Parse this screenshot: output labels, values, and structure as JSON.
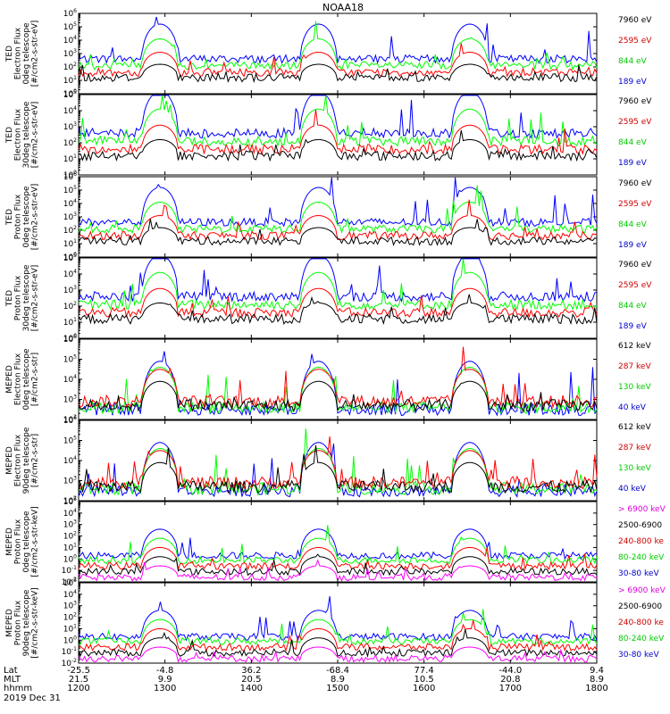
{
  "title": "NOAA18",
  "colors": {
    "black": "#000000",
    "red": "#ff0000",
    "green": "#00ff00",
    "blue": "#0000ff",
    "magenta": "#ff00ff",
    "text_red": "#d00000",
    "text_green": "#00cc00",
    "text_blue": "#0000cc",
    "text_magenta": "#dd00dd"
  },
  "footer": {
    "row_labels": [
      "Lat",
      "MLT",
      "hhmm"
    ],
    "date": "2019 Dec 31",
    "lat": [
      "-25.5",
      "-4.8",
      "36.2",
      "-68.4",
      "77.4",
      "-44.0",
      "9.4"
    ],
    "mlt": [
      "21.5",
      "9.9",
      "20.5",
      "8.9",
      "10.5",
      "20.8",
      "8.9"
    ],
    "hhmm": [
      "1200",
      "1300",
      "1400",
      "1500",
      "1600",
      "1700",
      "1800"
    ]
  },
  "chart_data": [
    {
      "type": "line",
      "ylabel": [
        "TED",
        "Electron Flux",
        "0deg telescope",
        "[#/cm2-s-str-eV]"
      ],
      "ylim_exp": [
        0,
        6
      ],
      "series": [
        {
          "name": "7960 eV",
          "color": "black"
        },
        {
          "name": "2595 eV",
          "color": "red"
        },
        {
          "name": "844 eV",
          "color": "green"
        },
        {
          "name": "189 eV",
          "color": "blue"
        }
      ]
    },
    {
      "type": "line",
      "ylabel": [
        "TED",
        "Electron Flux",
        "30deg telescope",
        "[#/cm2-s-str-eV]"
      ],
      "ylim_exp": [
        0,
        5
      ],
      "series": [
        {
          "name": "7960 eV",
          "color": "black"
        },
        {
          "name": "2595 eV",
          "color": "red"
        },
        {
          "name": "844 eV",
          "color": "green"
        },
        {
          "name": "189 eV",
          "color": "blue"
        }
      ]
    },
    {
      "type": "line",
      "ylabel": [
        "TED",
        "Proton Flux",
        "0deg telescope",
        "[#/cm2-s-str-eV]"
      ],
      "ylim_exp": [
        0,
        6
      ],
      "series": [
        {
          "name": "7960 eV",
          "color": "black"
        },
        {
          "name": "2595 eV",
          "color": "red"
        },
        {
          "name": "844 eV",
          "color": "green"
        },
        {
          "name": "189 eV",
          "color": "blue"
        }
      ]
    },
    {
      "type": "line",
      "ylabel": [
        "TED",
        "Proton Flux",
        "30deg telescope",
        "[#/cm2-s-str-eV]"
      ],
      "ylim_exp": [
        0,
        5
      ],
      "series": [
        {
          "name": "7960 eV",
          "color": "black"
        },
        {
          "name": "2595 eV",
          "color": "red"
        },
        {
          "name": "844 eV",
          "color": "green"
        },
        {
          "name": "189 eV",
          "color": "blue"
        }
      ]
    },
    {
      "type": "line",
      "ylabel": [
        "MEPED",
        "Electron Flux",
        "0deg telescope",
        "[#/cm2-s-str]"
      ],
      "ylim_exp": [
        2,
        6
      ],
      "series": [
        {
          "name": "612 keV",
          "color": "black"
        },
        {
          "name": "287 keV",
          "color": "red"
        },
        {
          "name": "130 keV",
          "color": "green"
        },
        {
          "name": "40 keV",
          "color": "blue"
        }
      ]
    },
    {
      "type": "line",
      "ylabel": [
        "MEPED",
        "Electron Flux",
        "90deg telescope",
        "[#/cm2-s-str]"
      ],
      "ylim_exp": [
        2,
        6
      ],
      "series": [
        {
          "name": "612 keV",
          "color": "black"
        },
        {
          "name": "287 keV",
          "color": "red"
        },
        {
          "name": "130 keV",
          "color": "green"
        },
        {
          "name": "40 keV",
          "color": "blue"
        }
      ]
    },
    {
      "type": "line",
      "ylabel": [
        "MEPED",
        "Proton Flux",
        "0deg telescope",
        "[#/cm2-s-str-keV]"
      ],
      "ylim_exp": [
        -2,
        5
      ],
      "series": [
        {
          "name": "> 6900 keV",
          "color": "magenta"
        },
        {
          "name": "2500-6900",
          "color": "black"
        },
        {
          "name": "240-800 ke",
          "color": "red"
        },
        {
          "name": "80-240 keV",
          "color": "green"
        },
        {
          "name": "30-80 keV",
          "color": "blue"
        }
      ]
    },
    {
      "type": "line",
      "ylabel": [
        "MEPED",
        "Proton Flux",
        "90deg telescope",
        "[#/cm2-s-str-keV]"
      ],
      "ylim_exp": [
        -2,
        5
      ],
      "series": [
        {
          "name": "> 6900 keV",
          "color": "magenta"
        },
        {
          "name": "2500-6900",
          "color": "black"
        },
        {
          "name": "240-800 ke",
          "color": "red"
        },
        {
          "name": "80-240 keV",
          "color": "green"
        },
        {
          "name": "30-80 keV",
          "color": "blue"
        }
      ]
    }
  ]
}
